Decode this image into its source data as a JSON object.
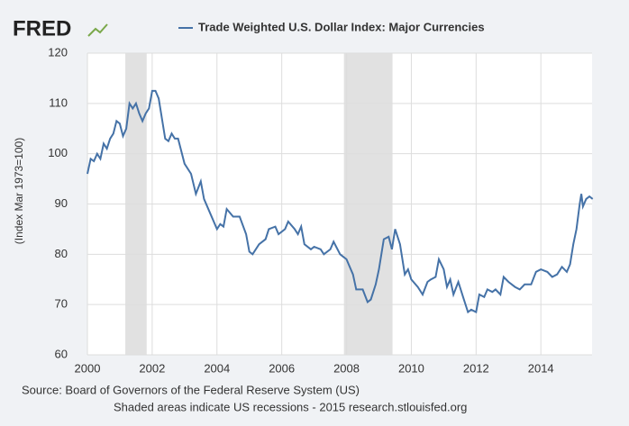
{
  "logo": "FRED",
  "chart_data": {
    "type": "line",
    "y_label": "(Index Mar 1973=100)",
    "source": "Source: Board of Governors of the Federal Reserve System (US)",
    "note": "Shaded areas indicate US recessions - 2015 research.stlouisfed.org",
    "x": [
      2000.0,
      2000.1,
      2000.2,
      2000.3,
      2000.4,
      2000.5,
      2000.6,
      2000.7,
      2000.8,
      2000.9,
      2001.0,
      2001.1,
      2001.2,
      2001.3,
      2001.4,
      2001.5,
      2001.6,
      2001.7,
      2001.8,
      2001.9,
      2002.0,
      2002.1,
      2002.2,
      2002.3,
      2002.4,
      2002.5,
      2002.6,
      2002.7,
      2002.8,
      2003.0,
      2003.2,
      2003.35,
      2003.5,
      2003.6,
      2003.8,
      2004.0,
      2004.1,
      2004.2,
      2004.3,
      2004.5,
      2004.7,
      2004.9,
      2005.0,
      2005.1,
      2005.3,
      2005.5,
      2005.6,
      2005.8,
      2005.9,
      2006.1,
      2006.2,
      2006.4,
      2006.5,
      2006.6,
      2006.7,
      2006.9,
      2007.0,
      2007.2,
      2007.3,
      2007.5,
      2007.6,
      2007.8,
      2008.0,
      2008.2,
      2008.3,
      2008.5,
      2008.65,
      2008.75,
      2008.9,
      2009.0,
      2009.15,
      2009.3,
      2009.4,
      2009.5,
      2009.65,
      2009.8,
      2009.9,
      2010.0,
      2010.2,
      2010.35,
      2010.5,
      2010.6,
      2010.75,
      2010.85,
      2011.0,
      2011.1,
      2011.2,
      2011.3,
      2011.45,
      2011.6,
      2011.75,
      2011.85,
      2012.0,
      2012.1,
      2012.25,
      2012.35,
      2012.5,
      2012.6,
      2012.75,
      2012.85,
      2013.0,
      2013.2,
      2013.35,
      2013.5,
      2013.7,
      2013.85,
      2014.0,
      2014.2,
      2014.35,
      2014.5,
      2014.65,
      2014.8,
      2014.9,
      2015.0,
      2015.1,
      2015.2,
      2015.25,
      2015.3,
      2015.4,
      2015.5,
      2015.6
    ],
    "series": [
      {
        "name": "Trade Weighted U.S. Dollar Index: Major Currencies",
        "color": "#4572a7",
        "values": [
          96,
          99,
          98.5,
          100,
          99,
          102,
          101,
          103,
          104,
          106.5,
          106,
          103.5,
          105,
          110,
          109,
          110,
          108,
          106.5,
          108,
          109,
          112.5,
          112.5,
          111,
          107,
          103,
          102.5,
          104,
          103,
          103,
          98,
          96,
          92,
          94.5,
          91,
          88,
          85,
          86,
          85.5,
          89,
          87.5,
          87.5,
          84,
          80.5,
          80,
          82,
          83,
          85,
          85.5,
          84,
          85,
          86.5,
          85,
          84,
          85.5,
          82,
          81,
          81.5,
          81,
          80,
          81,
          82.5,
          80,
          79,
          76,
          73,
          73,
          70.5,
          71,
          74,
          77,
          83,
          83.5,
          81,
          85,
          82,
          76,
          77,
          75,
          73.5,
          72,
          74.5,
          75,
          75.5,
          79,
          77,
          73.5,
          75,
          72,
          74.5,
          71.5,
          68.5,
          69,
          68.5,
          72,
          71.5,
          73,
          72.5,
          73,
          72,
          75.5,
          74.5,
          73.5,
          73,
          74,
          74,
          76.5,
          77,
          76.5,
          75.5,
          76,
          77.5,
          76.5,
          78,
          82,
          85,
          90,
          92,
          89.5,
          91,
          91.5,
          91
        ]
      }
    ],
    "recessions": [
      [
        2001.17,
        2001.83
      ],
      [
        2007.92,
        2009.42
      ]
    ],
    "xlim": [
      2000,
      2015.58
    ],
    "xticks": [
      2000,
      2002,
      2004,
      2006,
      2008,
      2010,
      2012,
      2014
    ],
    "ylim": [
      60,
      120
    ],
    "yticks": [
      60,
      70,
      80,
      90,
      100,
      110,
      120
    ],
    "grid": true
  }
}
